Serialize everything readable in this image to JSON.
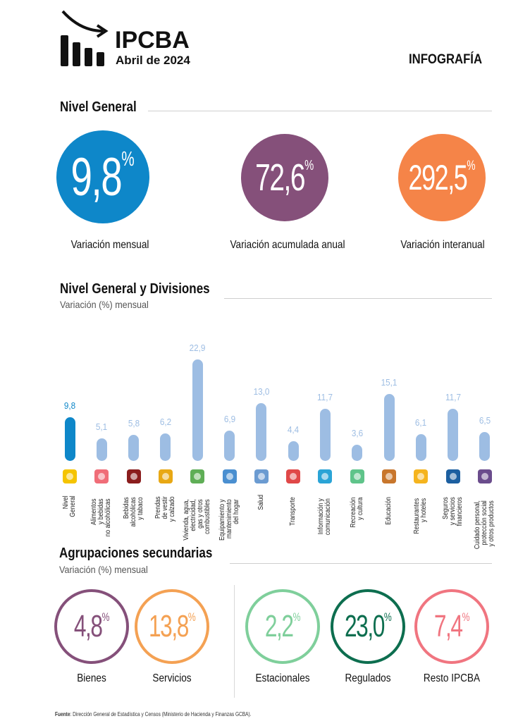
{
  "header": {
    "brand": "IPCBA",
    "period": "Abril de 2024",
    "doc_type": "INFOGRAFÍA"
  },
  "nivel_general": {
    "title": "Nivel General",
    "items": [
      {
        "value": "9,8",
        "unit": "%",
        "label": "Variación mensual",
        "color": "#0e87c9"
      },
      {
        "value": "72,6",
        "unit": "%",
        "label": "Variación acumulada anual",
        "color": "#85507a"
      },
      {
        "value": "292,5",
        "unit": "%",
        "label": "Variación interanual",
        "color": "#f58448"
      }
    ]
  },
  "divisiones": {
    "title": "Nivel General y Divisiones",
    "subtitle": "Variación (%) mensual"
  },
  "chart_data": {
    "type": "bar",
    "title": "Nivel General y Divisiones",
    "subtitle": "Variación (%) mensual",
    "ylabel": "Variación (%) mensual",
    "xlabel": "",
    "ylim": [
      0,
      23
    ],
    "grid": false,
    "highlight_color": "#0e87c9",
    "bar_color": "#9dbde3",
    "categories": [
      {
        "label": "Nivel\nGeneral",
        "icon": "ipc-ba-logo-icon",
        "value": 9.8,
        "value_label": "9,8",
        "highlight": true
      },
      {
        "label": "Alimentos\ny bebidas\nno alcohólicas",
        "icon": "food-icon",
        "value": 5.1,
        "value_label": "5,1"
      },
      {
        "label": "Bebidas\nalcohólicas\ny tabaco",
        "icon": "bottles-icon",
        "value": 5.8,
        "value_label": "5,8"
      },
      {
        "label": "Prendas\nde vestir\ny calzado",
        "icon": "clothing-icon",
        "value": 6.2,
        "value_label": "6,2"
      },
      {
        "label": "Vivienda, agua,\nelectricidad,\ngas y otros\ncombustibles",
        "icon": "house-icon",
        "value": 22.9,
        "value_label": "22,9"
      },
      {
        "label": "Equipamiento y\nmantenimiento\ndel hogar",
        "icon": "washing-machine-icon",
        "value": 6.9,
        "value_label": "6,9"
      },
      {
        "label": "Salud",
        "icon": "doctor-icon",
        "value": 13.0,
        "value_label": "13,0"
      },
      {
        "label": "Transporte",
        "icon": "car-plane-icon",
        "value": 4.4,
        "value_label": "4,4"
      },
      {
        "label": "Información y\ncomunicación",
        "icon": "computer-icon",
        "value": 11.7,
        "value_label": "11,7"
      },
      {
        "label": "Recreación\ny cultura",
        "icon": "theater-masks-icon",
        "value": 3.6,
        "value_label": "3,6"
      },
      {
        "label": "Educación",
        "icon": "school-icon",
        "value": 15.1,
        "value_label": "15,1"
      },
      {
        "label": "Restaurantes\ny hoteles",
        "icon": "restaurant-icon",
        "value": 6.1,
        "value_label": "6,1"
      },
      {
        "label": "Seguros\ny servicios\nfinancieros",
        "icon": "bank-icon",
        "value": 11.7,
        "value_label": "11,7"
      },
      {
        "label": "Cuidado personal,\nprotección social\ny otros productos",
        "icon": "personal-care-icon",
        "value": 6.5,
        "value_label": "6,5"
      }
    ]
  },
  "agrupaciones": {
    "title": "Agrupaciones secundarias",
    "subtitle": "Variación (%) mensual",
    "items": [
      {
        "value": "4,8",
        "unit": "%",
        "label": "Bienes",
        "color": "#85507a"
      },
      {
        "value": "13,8",
        "unit": "%",
        "label": "Servicios",
        "color": "#f4a153"
      },
      {
        "value": "2,2",
        "unit": "%",
        "label": "Estacionales",
        "color": "#7fcf9b"
      },
      {
        "value": "23,0",
        "unit": "%",
        "label": "Regulados",
        "color": "#0d6e4f"
      },
      {
        "value": "7,4",
        "unit": "%",
        "label": "Resto IPCBA",
        "color": "#f07580"
      }
    ]
  },
  "footer": {
    "source_label": "Fuente",
    "source_text": ": Dirección General de Estadística y Censos (Ministerio de Hacienda y Finanzas GCBA)."
  }
}
